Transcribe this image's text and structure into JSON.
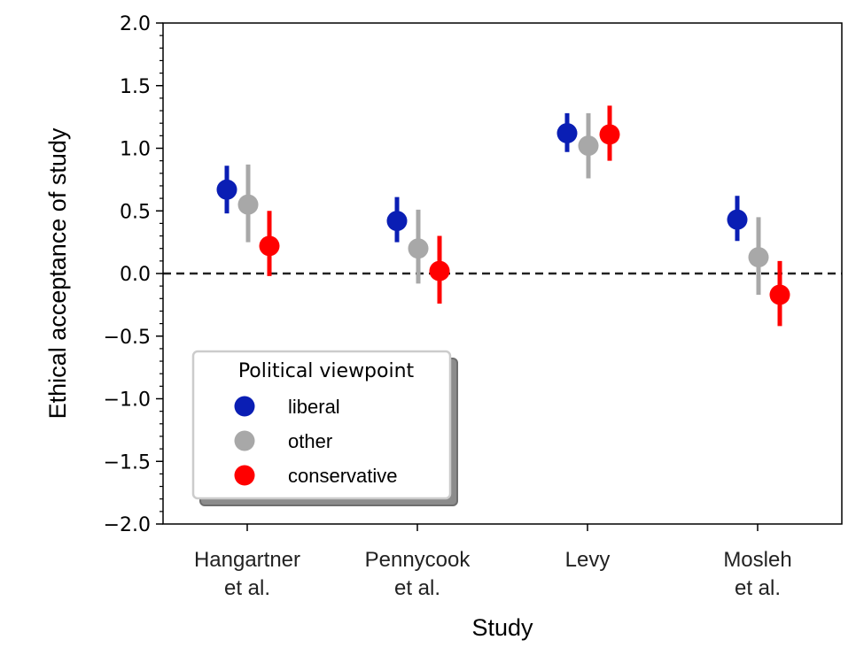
{
  "chart_data": {
    "type": "scatter",
    "variant": "dot-with-error-bars",
    "xlabel": "Study",
    "ylabel": "Ethical acceptance of study",
    "ylim": [
      -2.0,
      2.0
    ],
    "yticks": [
      "2.0",
      "1.5",
      "1.0",
      "0.5",
      "0.0",
      "−0.5",
      "−1.0",
      "−1.5",
      "−2.0"
    ],
    "ytick_values": [
      2.0,
      1.5,
      1.0,
      0.5,
      0.0,
      -0.5,
      -1.0,
      -1.5,
      -2.0
    ],
    "categories": [
      {
        "lines": [
          "Hangartner",
          "et al."
        ]
      },
      {
        "lines": [
          "Pennycook",
          "et al."
        ]
      },
      {
        "lines": [
          "Levy"
        ]
      },
      {
        "lines": [
          "Mosleh",
          "et al."
        ]
      }
    ],
    "reference_line": {
      "y": 0.0,
      "style": "dashed"
    },
    "legend": {
      "title": "Political viewpoint",
      "placement": "lower-left"
    },
    "series": [
      {
        "name": "liberal",
        "color": "#0a1eb4",
        "values": [
          0.67,
          0.42,
          1.12,
          0.43
        ],
        "lower": [
          0.48,
          0.25,
          0.97,
          0.26
        ],
        "upper": [
          0.86,
          0.61,
          1.28,
          0.62
        ]
      },
      {
        "name": "other",
        "color": "#a8a8a8",
        "values": [
          0.55,
          0.2,
          1.02,
          0.13
        ],
        "lower": [
          0.25,
          -0.08,
          0.76,
          -0.17
        ],
        "upper": [
          0.87,
          0.51,
          1.28,
          0.45
        ]
      },
      {
        "name": "conservative",
        "color": "#ff0000",
        "values": [
          0.22,
          0.02,
          1.11,
          -0.17
        ],
        "lower": [
          -0.02,
          -0.24,
          0.9,
          -0.42
        ],
        "upper": [
          0.5,
          0.3,
          1.34,
          0.1
        ]
      }
    ]
  }
}
